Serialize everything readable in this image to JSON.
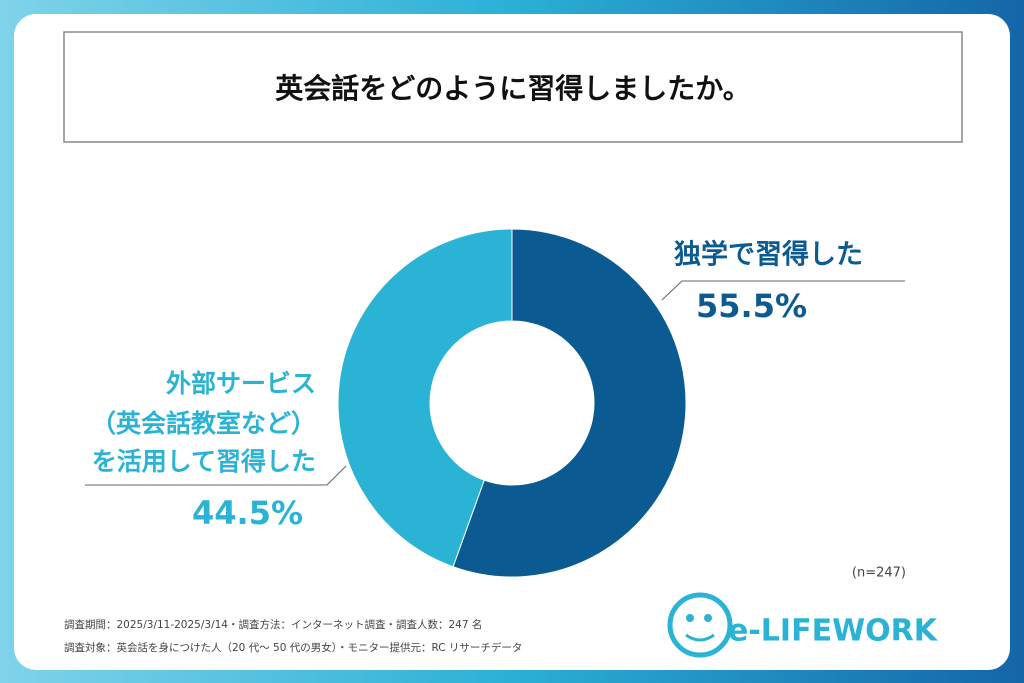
{
  "chart_data": {
    "type": "donut",
    "title": "英会話をどのように習得しましたか。",
    "categories": [
      "独学で習得した",
      [
        "外部サービス",
        "（英会話教室など）",
        "を活用して習得した"
      ]
    ],
    "values": [
      55.5,
      44.5
    ],
    "value_labels": [
      "55.5%",
      "44.5%"
    ],
    "colors": [
      "#0b5b92",
      "#2ab3d4"
    ],
    "note": "(n=247)"
  },
  "footer": {
    "notes": [
      "調査期間：2025/3/11-2025/3/14・調査方法：インターネット調査・調査人数：247 名",
      "調査対象：英会話を身につけた人（20 代～ 50 代の男女）・モニター提供元：RC リサーチデータ"
    ],
    "logo": "e-LIFEWORK"
  }
}
